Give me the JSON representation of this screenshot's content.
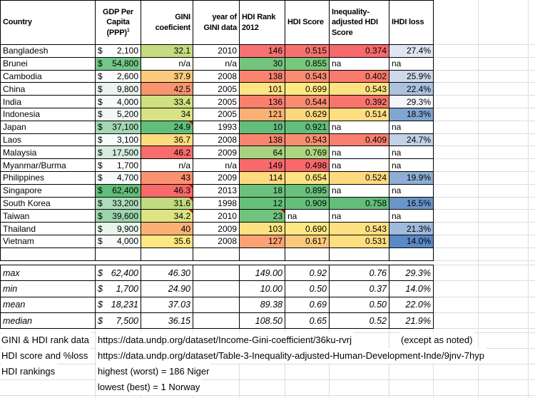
{
  "table": {
    "headers": [
      "Country",
      "GDP Per Capita (PPP)",
      "GINI coeficient",
      "year of GINI data",
      "HDI Rank 2012",
      "HDI Score",
      "Inequality-adjusted HDI Score",
      "IHDI loss"
    ],
    "gdp_superscript": "1",
    "currency_symbol": "$",
    "comment_marker_color": "#E00000",
    "rows": [
      {
        "country": "Bangladesh",
        "gdp": "2,100",
        "gdp_bg": "#FCFDFE",
        "gini": "32.1",
        "gini_bg": "#C6DC81",
        "gini_note": false,
        "year": "2010",
        "rank": "146",
        "rank_bg": "#F87173",
        "rank_note": false,
        "hdi": "0.515",
        "hdi_bg": "#F8726D",
        "iahdi": "0.374",
        "iahdi_bg": "#F8696B",
        "loss": "27.4%",
        "loss_bg": "#DFE6F1"
      },
      {
        "country": "Brunei",
        "gdp": "54,800",
        "gdp_bg": "#76C68C",
        "gini": "n/a",
        "gini_bg": "#FFFFFF",
        "gini_note": false,
        "year": "n/a",
        "rank": "30",
        "rank_bg": "#74C47D",
        "rank_note": false,
        "hdi": "0.855",
        "hdi_bg": "#79C67D",
        "iahdi": "na",
        "iahdi_bg": "#FFFFFF",
        "loss": "na",
        "loss_bg": "#FFFFFF"
      },
      {
        "country": "Cambodia",
        "gdp": "2,600",
        "gdp_bg": "#FAFCFD",
        "gini": "37.9",
        "gini_bg": "#FCCA7C",
        "gini_note": false,
        "year": "2008",
        "rank": "138",
        "rank_bg": "#F9846F",
        "rank_note": false,
        "hdi": "0.543",
        "hdi_bg": "#F98D71",
        "iahdi": "0.402",
        "iahdi_bg": "#F97B6E",
        "loss": "25.9%",
        "loss_bg": "#CDD9EB"
      },
      {
        "country": "China",
        "gdp": "9,800",
        "gdp_bg": "#E8F4ED",
        "gini": "42.5",
        "gini_bg": "#F9946F",
        "gini_note": false,
        "year": "2005",
        "rank": "101",
        "rank_bg": "#FEE482",
        "rank_note": false,
        "hdi": "0.699",
        "hdi_bg": "#FEE983",
        "iahdi": "0.543",
        "iahdi_bg": "#FEE182",
        "loss": "22.4%",
        "loss_bg": "#ABC2DF"
      },
      {
        "country": "India",
        "gdp": "4,000",
        "gdp_bg": "#F6FAFA",
        "gini": "33.4",
        "gini_bg": "#D0E081",
        "gini_note": false,
        "year": "2005",
        "rank": "136",
        "rank_bg": "#F8806E",
        "rank_note": false,
        "hdi": "0.544",
        "hdi_bg": "#F98C71",
        "iahdi": "0.392",
        "iahdi_bg": "#F8746C",
        "loss": "29.3%",
        "loss_bg": "#F4F6FB"
      },
      {
        "country": "Indonesia",
        "gdp": "5,200",
        "gdp_bg": "#F3F8F7",
        "gini": "34",
        "gini_bg": "#D9E383",
        "gini_note": false,
        "year": "2005",
        "rank": "121",
        "rank_bg": "#FBB175",
        "rank_note": false,
        "hdi": "0.629",
        "hdi_bg": "#FDD67E",
        "iahdi": "0.514",
        "iahdi_bg": "#FEDE81",
        "loss": "18.3%",
        "loss_bg": "#81A5D1"
      },
      {
        "country": "Japan",
        "gdp": "37,100",
        "gdp_bg": "#A3D8B2",
        "gini": "24.9",
        "gini_bg": "#63BE7B",
        "gini_note": true,
        "year": "1993",
        "rank": "10",
        "rank_bg": "#63BE7B",
        "rank_note": false,
        "hdi": "0.921",
        "hdi_bg": "#63BE7B",
        "iahdi": "na",
        "iahdi_bg": "#FFFFFF",
        "loss": "na",
        "loss_bg": "#FFFFFF"
      },
      {
        "country": "Laos",
        "gdp": "3,100",
        "gdp_bg": "#F8FBFC",
        "gini": "36.7",
        "gini_bg": "#FDDC7F",
        "gini_note": false,
        "year": "2008",
        "rank": "138",
        "rank_bg": "#F9846F",
        "rank_note": false,
        "hdi": "0.543",
        "hdi_bg": "#F98D71",
        "iahdi": "0.409",
        "iahdi_bg": "#F97F6E",
        "loss": "24.7%",
        "loss_bg": "#C1D1E7"
      },
      {
        "country": "Malaysia",
        "gdp": "17,500",
        "gdp_bg": "#D4ECDD",
        "gini": "46.2",
        "gini_bg": "#F86C6C",
        "gini_note": false,
        "year": "2009",
        "rank": "64",
        "rank_bg": "#A6D37F",
        "rank_note": false,
        "hdi": "0.769",
        "hdi_bg": "#ACD57F",
        "iahdi": "na",
        "iahdi_bg": "#FFFFFF",
        "loss": "na",
        "loss_bg": "#FFFFFF"
      },
      {
        "country": "Myanmar/Burma",
        "gdp": "1,700",
        "gdp_bg": "#FCFCFE",
        "gini": "n/a",
        "gini_bg": "#FFFFFF",
        "gini_note": false,
        "year": "n/a",
        "rank": "149",
        "rank_bg": "#F8696B",
        "rank_note": false,
        "hdi": "0.498",
        "hdi_bg": "#F8696B",
        "iahdi": "na",
        "iahdi_bg": "#FFFFFF",
        "loss": "na",
        "loss_bg": "#FFFFFF"
      },
      {
        "country": "Philippines",
        "gdp": "4,700",
        "gdp_bg": "#F4F9F9",
        "gini": "43",
        "gini_bg": "#FA9170",
        "gini_note": false,
        "year": "2009",
        "rank": "114",
        "rank_bg": "#FED980",
        "rank_note": false,
        "hdi": "0.654",
        "hdi_bg": "#FEE382",
        "iahdi": "0.524",
        "iahdi_bg": "#FED97F",
        "loss": "19.9%",
        "loss_bg": "#8EAED6"
      },
      {
        "country": "Singapore",
        "gdp": "62,400",
        "gdp_bg": "#63BE7B",
        "gini": "46.3",
        "gini_bg": "#F8696B",
        "gini_note": true,
        "year": "2013",
        "rank": "18",
        "rank_bg": "#6CC27C",
        "rank_note": false,
        "hdi": "0.895",
        "hdi_bg": "#6AC17C",
        "iahdi": "na",
        "iahdi_bg": "#FFFFFF",
        "loss": "na",
        "loss_bg": "#FFFFFF"
      },
      {
        "country": "South Korea",
        "gdp": "33,200",
        "gdp_bg": "#ADDCBA",
        "gini": "31.6",
        "gini_bg": "#C2DA80",
        "gini_note": true,
        "year": "1998",
        "rank": "12",
        "rank_bg": "#66BF7B",
        "rank_note": false,
        "hdi": "0.909",
        "hdi_bg": "#65BF7B",
        "iahdi": "0.758",
        "iahdi_bg": "#63BE7B",
        "loss": "16.5%",
        "loss_bg": "#6B96CA"
      },
      {
        "country": "Taiwan",
        "gdp": "39,600",
        "gdp_bg": "#9CD5AD",
        "gini": "34.2",
        "gini_bg": "#DCE483",
        "gini_note": true,
        "year": "2010",
        "rank": "23",
        "rank_bg": "#70C37D",
        "rank_note": true,
        "hdi": "na",
        "hdi_bg": "#FFFFFF",
        "iahdi": "na",
        "iahdi_bg": "#FFFFFF",
        "loss": "na",
        "loss_bg": "#FFFFFF"
      },
      {
        "country": "Thailand",
        "gdp": "9,900",
        "gdp_bg": "#E8F4EC",
        "gini": "40",
        "gini_bg": "#FBB176",
        "gini_note": false,
        "year": "2009",
        "rank": "103",
        "rank_bg": "#FEE282",
        "rank_note": false,
        "hdi": "0.690",
        "hdi_bg": "#FEE883",
        "iahdi": "0.543",
        "iahdi_bg": "#FEE182",
        "loss": "21.3%",
        "loss_bg": "#A0BADC"
      },
      {
        "country": "Vietnam",
        "gdp": "4,000",
        "gdp_bg": "#F6FAFA",
        "gini": "35.6",
        "gini_bg": "#FEE883",
        "gini_note": false,
        "year": "2008",
        "rank": "127",
        "rank_bg": "#FBA274",
        "rank_note": false,
        "hdi": "0.617",
        "hdi_bg": "#FCC97C",
        "iahdi": "0.531",
        "iahdi_bg": "#FEDF81",
        "loss": "14.0%",
        "loss_bg": "#5A8AC6"
      }
    ]
  },
  "summary": {
    "rows": [
      {
        "label": "max",
        "gdp": "62,400",
        "gini": "46.30",
        "year": "",
        "rank": "149.00",
        "hdi": "0.92",
        "iahdi": "0.76",
        "loss": "29.3%"
      },
      {
        "label": "min",
        "gdp": "1,700",
        "gini": "24.90",
        "year": "",
        "rank": "10.00",
        "hdi": "0.50",
        "iahdi": "0.37",
        "loss": "14.0%"
      },
      {
        "label": "mean",
        "gdp": "18,231",
        "gini": "37.03",
        "year": "",
        "rank": "89.38",
        "hdi": "0.69",
        "iahdi": "0.50",
        "loss": "22.0%"
      },
      {
        "label": "median",
        "gdp": "7,500",
        "gini": "36.15",
        "year": "",
        "rank": "108.50",
        "hdi": "0.65",
        "iahdi": "0.52",
        "loss": "21.9%"
      }
    ]
  },
  "notes": [
    {
      "label": "GINI & HDI rank data",
      "text": "https://data.undp.org/dataset/Income-Gini-coefficient/36ku-rvrj",
      "suffix": "(except as noted)"
    },
    {
      "label": "HDI score and %loss",
      "text": "https://data.undp.org/dataset/Table-3-Inequality-adjusted-Human-Development-Inde/9jnv-7hyp",
      "suffix": ""
    },
    {
      "label": "HDI rankings",
      "text": "highest (worst) = 186 Niger",
      "suffix": ""
    },
    {
      "label": "",
      "text": "lowest (best) = 1 Norway",
      "suffix": ""
    }
  ]
}
